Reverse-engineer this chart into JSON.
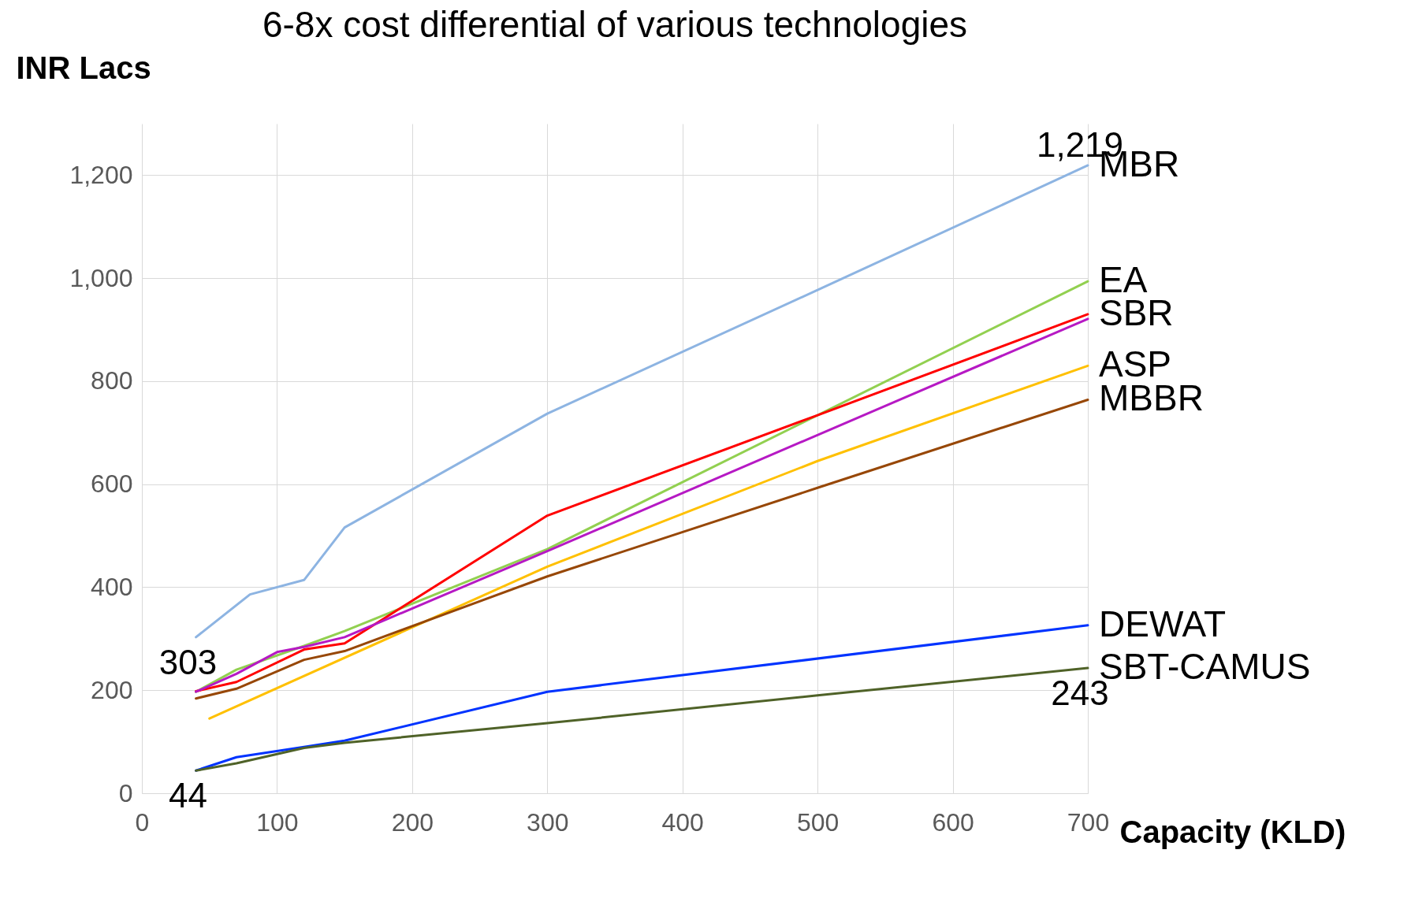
{
  "chart_data": {
    "type": "line",
    "title": "6-8x cost differential of various technologies",
    "xlabel": "Capacity (KLD)",
    "ylabel": "INR Lacs",
    "xlim": [
      0,
      700
    ],
    "xticks": [
      0,
      100,
      200,
      300,
      400,
      500,
      600,
      700
    ],
    "ylim": [
      0,
      1300
    ],
    "yticks": [
      0,
      200,
      400,
      600,
      800,
      {
        "value": 1000,
        "label": "1,000"
      },
      {
        "value": 1200,
        "label": "1,200"
      }
    ],
    "grid": true,
    "legend": false,
    "line_style": "solid",
    "marker": "none",
    "series": [
      {
        "name": "MBR",
        "color": "#8db4e2",
        "x": [
          40,
          80,
          120,
          150,
          300,
          500,
          700
        ],
        "values": [
          303,
          386,
          414,
          516,
          737,
          977,
          1219
        ],
        "value_labels": [
          "303",
          null,
          null,
          null,
          null,
          null,
          "1,219"
        ]
      },
      {
        "name": "EA",
        "color": "#92d050",
        "x": [
          40,
          70,
          120,
          150,
          300,
          700
        ],
        "values": [
          197,
          240,
          286,
          315,
          474,
          994
        ]
      },
      {
        "name": "SBR",
        "color": "#ff0000",
        "x": [
          40,
          70,
          120,
          150,
          300,
          500,
          700
        ],
        "values": [
          198,
          216,
          279,
          291,
          539,
          734,
          930
        ]
      },
      {
        "color": "#b619c4",
        "x": [
          40,
          70,
          100,
          120,
          150,
          300,
          700
        ],
        "values": [
          197,
          232,
          274,
          284,
          303,
          470,
          921
        ]
      },
      {
        "name": "ASP",
        "color": "#ffc000",
        "x": [
          50,
          300,
          500,
          700
        ],
        "values": [
          145,
          440,
          645,
          830
        ]
      },
      {
        "name": "MBBR",
        "color": "#974706",
        "x": [
          40,
          70,
          120,
          150,
          300,
          500,
          700
        ],
        "values": [
          184,
          203,
          259,
          276,
          421,
          593,
          764
        ]
      },
      {
        "name": "DEWAT",
        "color": "#0033ff",
        "x": [
          40,
          70,
          120,
          150,
          300,
          700
        ],
        "values": [
          44,
          70,
          90,
          102,
          197,
          326
        ],
        "value_labels": [
          "44",
          null,
          null,
          null,
          null,
          null
        ]
      },
      {
        "name": "SBT-CAMUS",
        "color": "#4f6228",
        "x": [
          40,
          70,
          120,
          150,
          300,
          500,
          700
        ],
        "values": [
          44,
          58,
          88,
          98,
          136,
          190,
          243
        ],
        "value_labels": [
          null,
          null,
          null,
          null,
          null,
          null,
          "243"
        ]
      }
    ]
  }
}
